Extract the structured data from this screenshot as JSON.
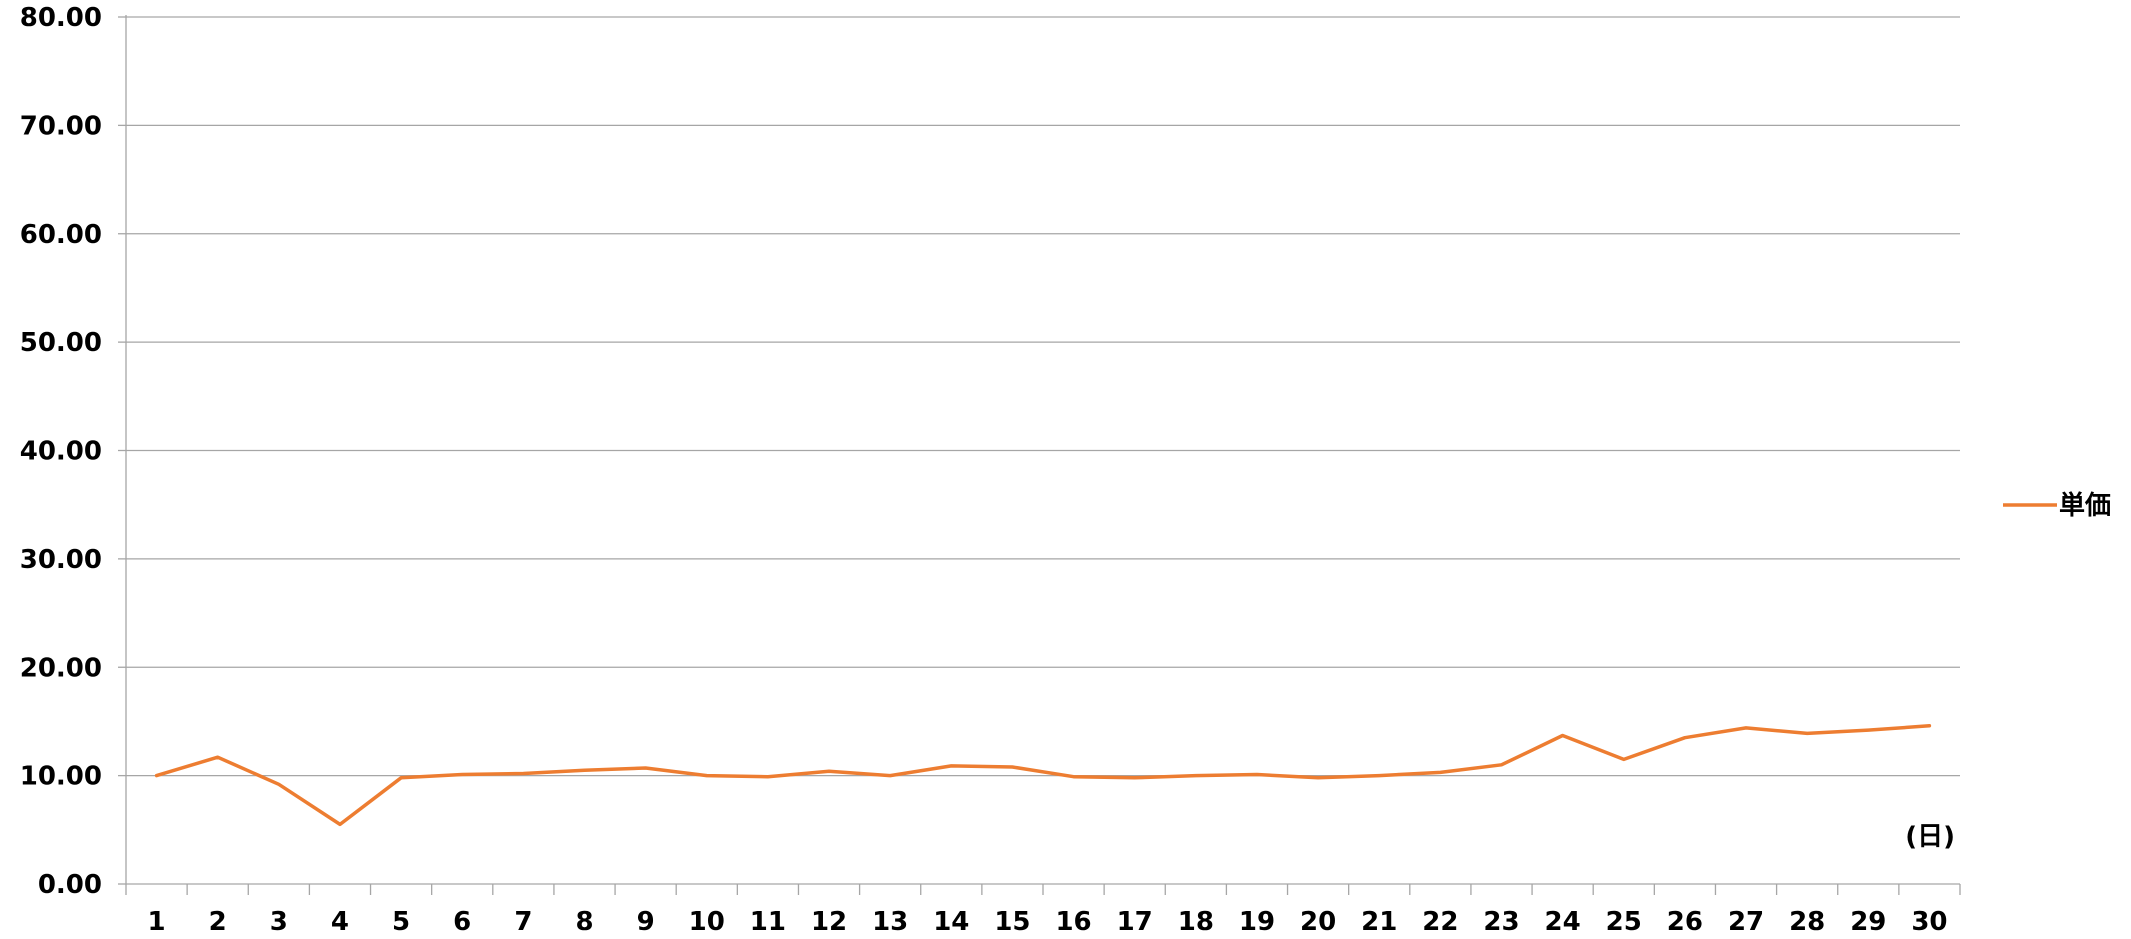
{
  "chart_data": {
    "type": "line",
    "categories": [
      "1",
      "2",
      "3",
      "4",
      "5",
      "6",
      "7",
      "8",
      "9",
      "10",
      "11",
      "12",
      "13",
      "14",
      "15",
      "16",
      "17",
      "18",
      "19",
      "20",
      "21",
      "22",
      "23",
      "24",
      "25",
      "26",
      "27",
      "28",
      "29",
      "30"
    ],
    "series": [
      {
        "name": "単価",
        "color": "#ED7D31",
        "values": [
          10.0,
          11.7,
          9.2,
          5.5,
          9.8,
          10.1,
          10.2,
          10.5,
          10.7,
          10.0,
          9.9,
          10.4,
          10.0,
          10.9,
          10.8,
          9.9,
          9.8,
          10.0,
          10.1,
          9.8,
          10.0,
          10.3,
          11.0,
          13.7,
          11.5,
          13.5,
          14.4,
          13.9,
          14.2,
          14.6
        ]
      }
    ],
    "yticks": [
      "0.00",
      "10.00",
      "20.00",
      "30.00",
      "40.00",
      "50.00",
      "60.00",
      "70.00",
      "80.00"
    ],
    "ylim": [
      0,
      80
    ],
    "ytick_step": 10,
    "x_unit_label": "(日)",
    "title": "",
    "xlabel": "",
    "ylabel": "",
    "grid": true,
    "legend_position": "right",
    "gridline_color": "#A6A6A6",
    "axis_color": "#A6A6A6"
  }
}
